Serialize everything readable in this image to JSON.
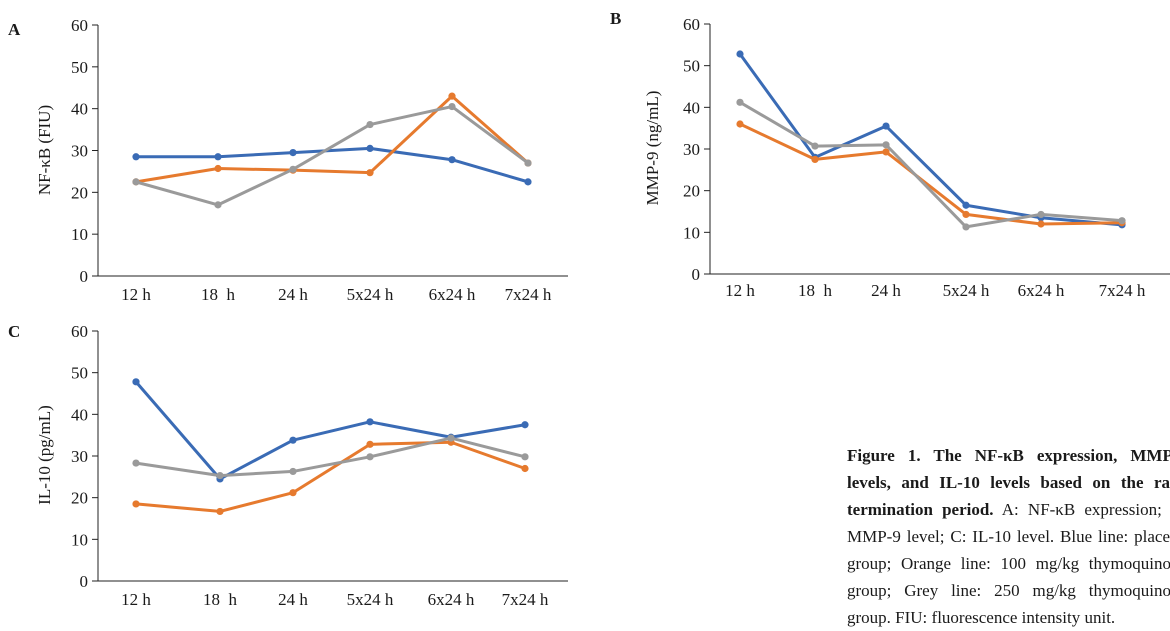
{
  "chart_data": [
    {
      "panel": "A",
      "type": "line",
      "ylabel": "NF-κB (FIU)",
      "xlabel": "",
      "ylim": [
        0,
        60
      ],
      "yticks": [
        "0",
        "10",
        "20",
        "30",
        "40",
        "50",
        "60"
      ],
      "categories": [
        "12 h",
        "18  h",
        "24 h",
        "5x24 h",
        "6x24 h",
        "7x24 h"
      ],
      "series": [
        {
          "color": "#3a6bb5",
          "values": [
            28.5,
            28.5,
            29.5,
            30.5,
            27.8,
            22.5
          ]
        },
        {
          "color": "#e67a2e",
          "values": [
            22.5,
            25.7,
            25.3,
            24.7,
            43.0,
            27.0
          ]
        },
        {
          "color": "#9a9a9a",
          "values": [
            22.5,
            17.0,
            25.5,
            36.2,
            40.5,
            27.0
          ]
        }
      ]
    },
    {
      "panel": "B",
      "type": "line",
      "ylabel": "MMP-9 (ng/mL)",
      "xlabel": "",
      "ylim": [
        0,
        60
      ],
      "yticks": [
        "0",
        "10",
        "20",
        "30",
        "40",
        "50",
        "60"
      ],
      "categories": [
        "12 h",
        "18  h",
        "24 h",
        "5x24 h",
        "6x24 h",
        "7x24 h"
      ],
      "series": [
        {
          "color": "#3a6bb5",
          "values": [
            52.8,
            28.0,
            35.5,
            16.5,
            13.5,
            11.8
          ]
        },
        {
          "color": "#e67a2e",
          "values": [
            36.0,
            27.5,
            29.3,
            14.3,
            12.0,
            12.3
          ]
        },
        {
          "color": "#9a9a9a",
          "values": [
            41.2,
            30.7,
            31.0,
            11.3,
            14.3,
            12.8
          ]
        }
      ]
    },
    {
      "panel": "C",
      "type": "line",
      "ylabel": "IL-10 (pg/mL)",
      "xlabel": "",
      "ylim": [
        0,
        60
      ],
      "yticks": [
        "0",
        "10",
        "20",
        "30",
        "40",
        "50",
        "60"
      ],
      "categories": [
        "12 h",
        "18  h",
        "24 h",
        "5x24 h",
        "6x24 h",
        "7x24 h"
      ],
      "series": [
        {
          "color": "#3a6bb5",
          "values": [
            47.8,
            24.5,
            33.8,
            38.2,
            34.5,
            37.5
          ]
        },
        {
          "color": "#e67a2e",
          "values": [
            18.5,
            16.7,
            21.2,
            32.8,
            33.3,
            27.0
          ]
        },
        {
          "color": "#9a9a9a",
          "values": [
            28.3,
            25.3,
            26.3,
            29.8,
            34.3,
            29.8
          ]
        }
      ]
    }
  ],
  "caption": {
    "bold": "Figure 1. The NF-κB expression, MMP-9 levels, and IL-10 levels based on the rats' termination period.",
    "text": " A: NF-κB expression; B: MMP-9 level; C: IL-10 level. Blue line: placebo group; Orange line: 100 mg/kg thymoquinone group; Grey line: 250 mg/kg thymoquinone group. FIU: fluorescence intensity unit."
  }
}
